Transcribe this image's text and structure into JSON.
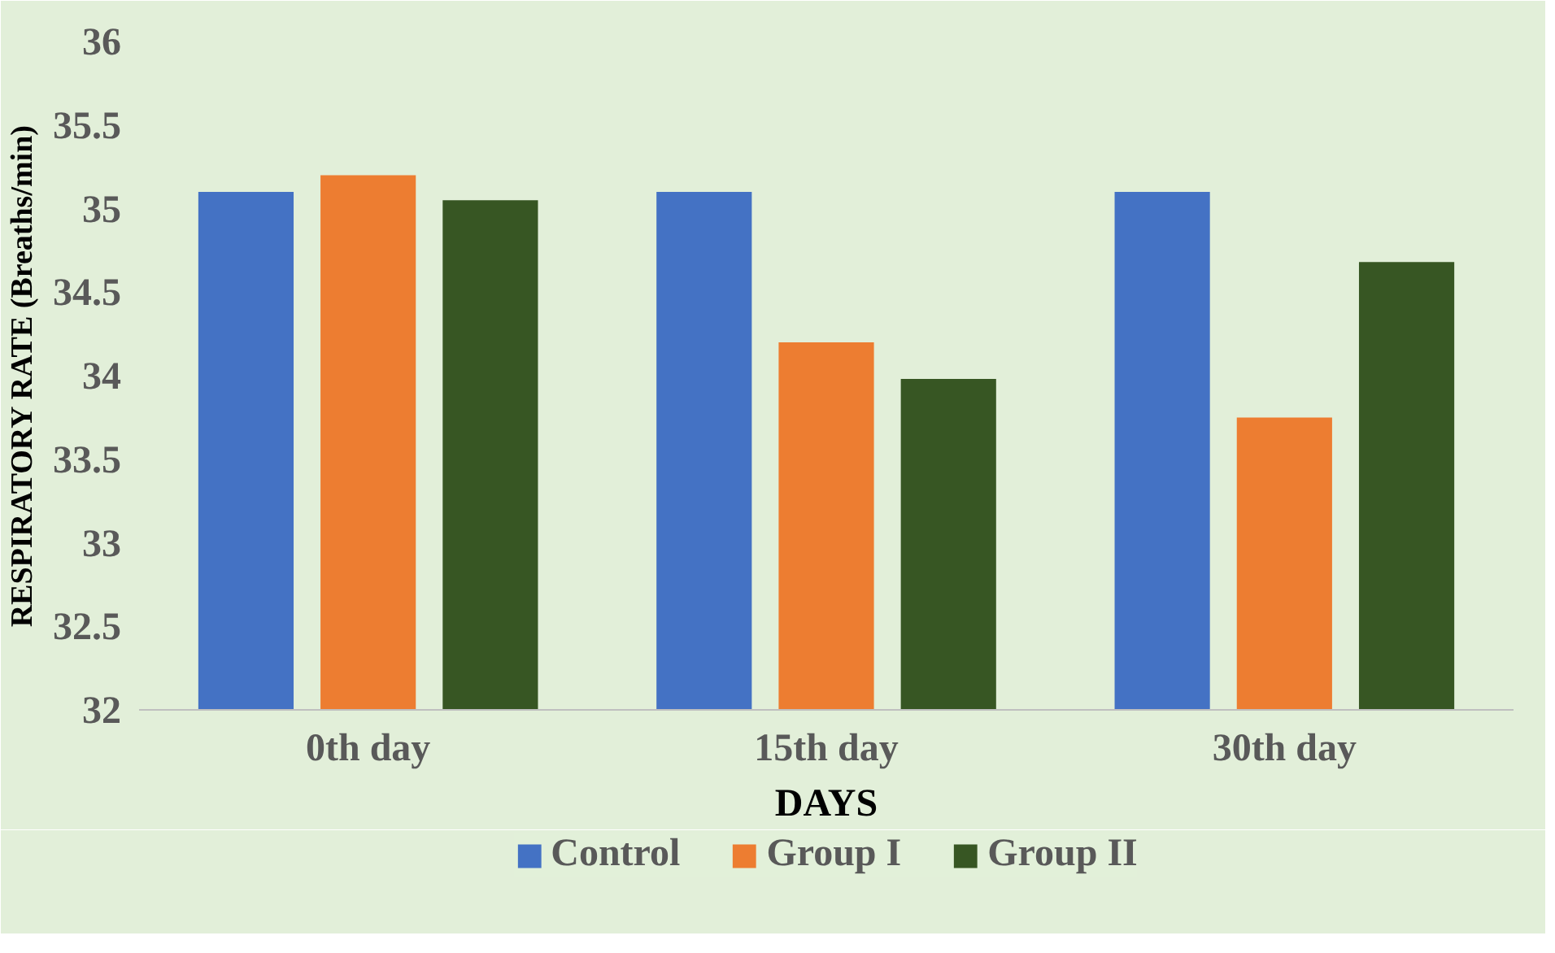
{
  "chart_data": {
    "type": "bar",
    "xlabel": "DAYS",
    "ylabel": "RESPIRATORY RATE (Breaths/min)",
    "categories": [
      "0th day",
      "15th day",
      "30th day"
    ],
    "series": [
      {
        "name": "Control",
        "color": "#4472c4",
        "values": [
          35.1,
          35.1,
          35.1
        ]
      },
      {
        "name": "Group I",
        "color": "#ed7d31",
        "values": [
          35.2,
          34.2,
          33.75
        ]
      },
      {
        "name": "Group II",
        "color": "#375623",
        "values": [
          35.05,
          33.98,
          34.68
        ]
      }
    ],
    "ylim": [
      32,
      36
    ],
    "yticks": [
      32,
      32.5,
      33,
      33.5,
      34,
      34.5,
      35,
      35.5,
      36
    ],
    "grid": false,
    "legend": "bottom"
  }
}
